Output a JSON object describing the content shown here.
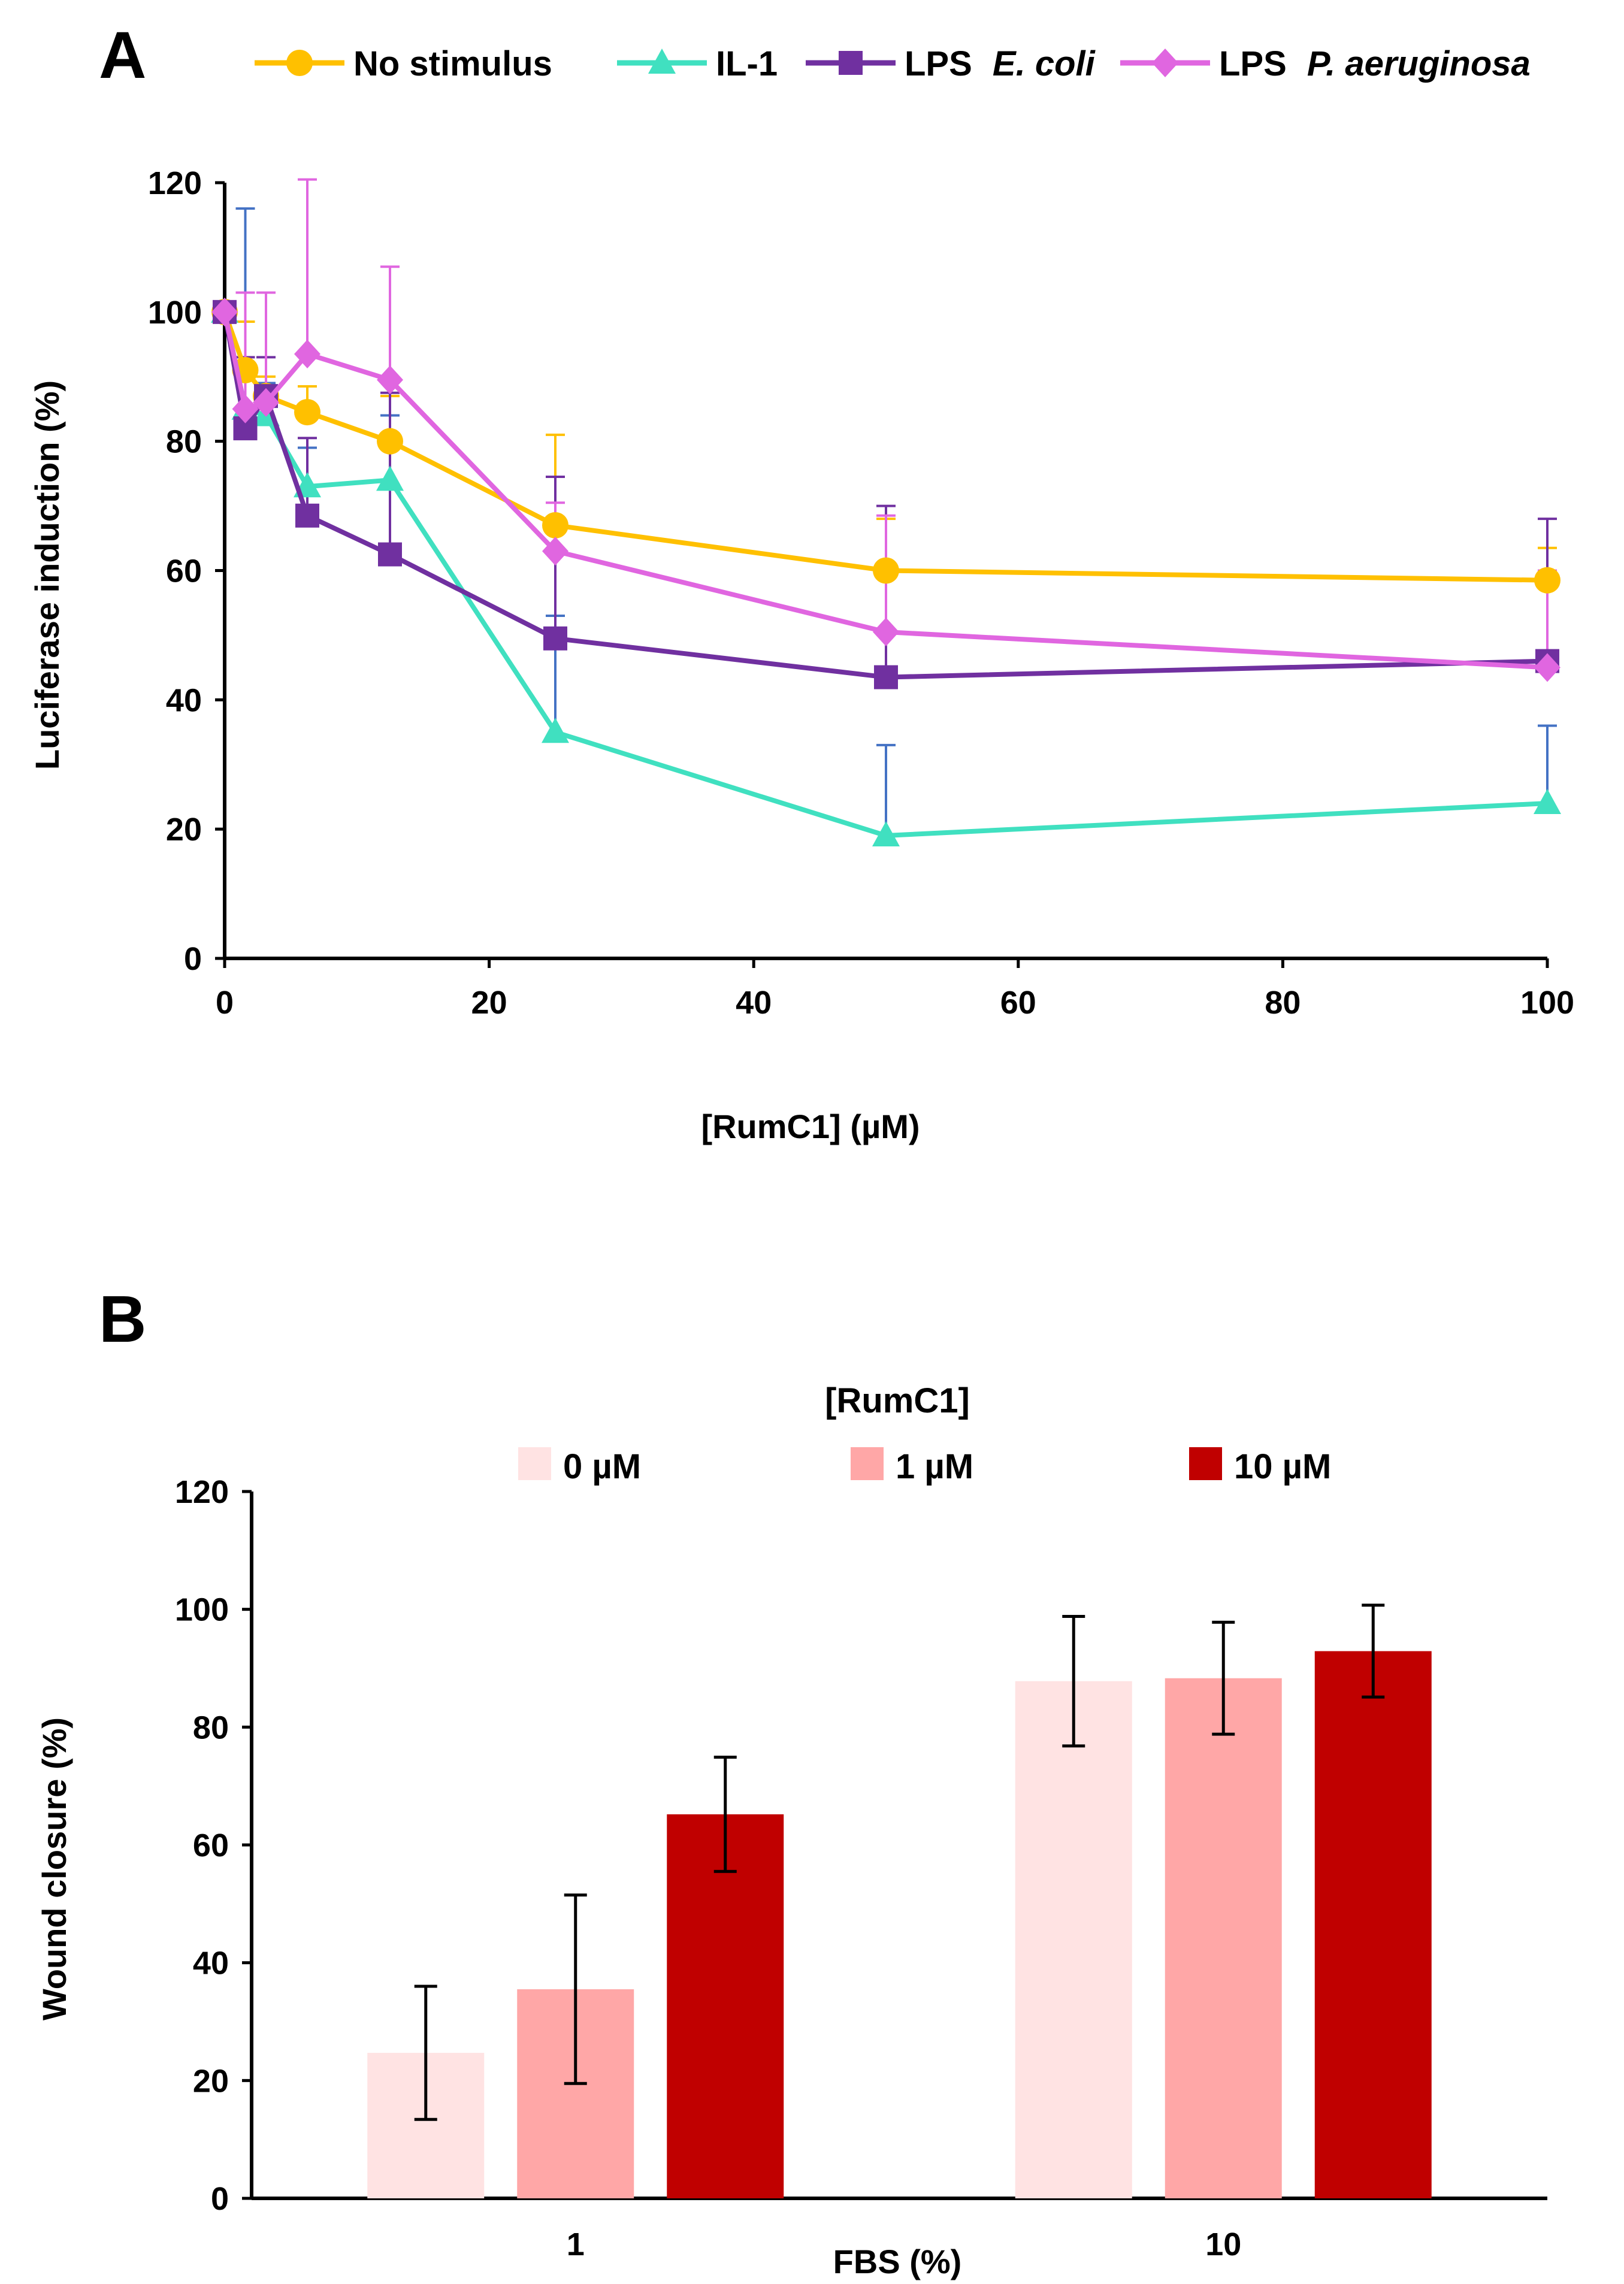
{
  "panels": {
    "a": {
      "letter": "A"
    },
    "b": {
      "letter": "B",
      "legend_title": "[RumC1]"
    }
  },
  "chart_data": [
    {
      "id": "A",
      "type": "line",
      "title": "",
      "xlabel": "[RumC1] (µM)",
      "ylabel": "Luciferase induction (%)",
      "xlim": [
        0,
        100
      ],
      "ylim": [
        0,
        120
      ],
      "xticks": [
        0,
        20,
        40,
        60,
        80,
        100
      ],
      "yticks": [
        0,
        20,
        40,
        60,
        80,
        100,
        120
      ],
      "grid": false,
      "legend_position": "top",
      "x": [
        0,
        1.5625,
        3.125,
        6.25,
        12.5,
        25,
        50,
        100
      ],
      "series": [
        {
          "name": "No stimulus",
          "label_plain": "No stimulus",
          "label_italic": "",
          "color": "#FFC000",
          "error_color": "#FFC000",
          "marker": "circle",
          "values": [
            100,
            91,
            87,
            84.5,
            80,
            67,
            60,
            58.5
          ],
          "errors": [
            0,
            7.5,
            3,
            4,
            7,
            14,
            8,
            5
          ]
        },
        {
          "name": "IL-1",
          "label_plain": "IL-1",
          "label_italic": "",
          "color": "#40E0C0",
          "error_color": "#4472C4",
          "marker": "triangle",
          "values": [
            100,
            85,
            84,
            73,
            74,
            35,
            19,
            24
          ],
          "errors": [
            0,
            31,
            5,
            6,
            10,
            18,
            14,
            12
          ]
        },
        {
          "name": "LPS E. coli",
          "label_plain": "LPS ",
          "label_italic": "E. coli",
          "color": "#7030A0",
          "error_color": "#7030A0",
          "marker": "square",
          "values": [
            100,
            82,
            87,
            68.5,
            62.5,
            49.5,
            43.5,
            46
          ],
          "errors": [
            0,
            11,
            6,
            12,
            25,
            25,
            26.5,
            22
          ]
        },
        {
          "name": "LPS P. aeruginosa",
          "label_plain": "LPS ",
          "label_italic": "P. aeruginosa",
          "color": "#E066E0",
          "error_color": "#E066E0",
          "marker": "diamond",
          "values": [
            100,
            85,
            86,
            93.5,
            89.5,
            63,
            50.5,
            45
          ],
          "errors": [
            0,
            18,
            17,
            27,
            17.5,
            7.5,
            18,
            15
          ]
        }
      ]
    },
    {
      "id": "B",
      "type": "bar",
      "title": "",
      "xlabel": "FBS (%)",
      "ylabel": "Wound closure (%)",
      "ylim": [
        0,
        120
      ],
      "yticks": [
        0,
        20,
        40,
        60,
        80,
        100,
        120
      ],
      "grid": false,
      "legend_title": "[RumC1]",
      "legend_position": "top",
      "categories": [
        "1",
        "10"
      ],
      "series": [
        {
          "name": "0 µM",
          "color": "#FFE3E3",
          "values": [
            24.7,
            87.8
          ],
          "errors": [
            11.3,
            11
          ]
        },
        {
          "name": "1 µM",
          "color": "#FFA7A7",
          "values": [
            35.5,
            88.3
          ],
          "errors": [
            16,
            9.5
          ]
        },
        {
          "name": "10 µM",
          "color": "#C00000",
          "values": [
            65.2,
            92.9
          ],
          "errors": [
            9.7,
            7.8
          ]
        }
      ]
    }
  ]
}
